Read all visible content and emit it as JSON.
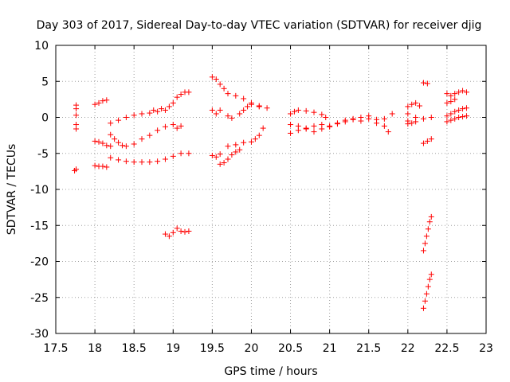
{
  "chart_data": {
    "type": "scatter",
    "title": "Day 303 of 2017, Sidereal Day-to-day VTEC variation (SDTVAR) for receiver djig",
    "xlabel": "GPS time / hours",
    "ylabel": "SDTVAR / TECUs",
    "xlim": [
      17.5,
      23
    ],
    "ylim": [
      -30,
      10
    ],
    "xticks": [
      "17.5",
      "18",
      "18.5",
      "19",
      "19.5",
      "20",
      "20.5",
      "21",
      "21.5",
      "22",
      "22.5",
      "23"
    ],
    "yticks": [
      "10",
      "5",
      "0",
      "-5",
      "-10",
      "-15",
      "-20",
      "-25",
      "-30"
    ],
    "grid": true,
    "marker": "plus",
    "color": "#ff0000",
    "series": [
      {
        "points": [
          [
            17.76,
            1.7
          ],
          [
            17.76,
            1.2
          ],
          [
            17.76,
            0.3
          ],
          [
            17.76,
            -1.0
          ],
          [
            17.76,
            -1.6
          ],
          [
            17.76,
            -7.2
          ],
          [
            17.74,
            -7.4
          ]
        ]
      },
      {
        "points": [
          [
            18.0,
            1.8
          ],
          [
            18.05,
            2.0
          ],
          [
            18.1,
            2.3
          ],
          [
            18.15,
            2.4
          ]
        ]
      },
      {
        "points": [
          [
            18.0,
            -3.3
          ],
          [
            18.05,
            -3.4
          ],
          [
            18.1,
            -3.6
          ],
          [
            18.15,
            -3.9
          ],
          [
            18.2,
            -4.0
          ]
        ]
      },
      {
        "points": [
          [
            18.0,
            -6.7
          ],
          [
            18.05,
            -6.8
          ],
          [
            18.1,
            -6.8
          ],
          [
            18.15,
            -6.9
          ]
        ]
      },
      {
        "points": [
          [
            18.2,
            -0.8
          ],
          [
            18.3,
            -0.4
          ],
          [
            18.4,
            0.0
          ],
          [
            18.5,
            0.3
          ],
          [
            18.6,
            0.5
          ],
          [
            18.7,
            0.6
          ],
          [
            18.75,
            1.0
          ],
          [
            18.8,
            0.8
          ],
          [
            18.85,
            1.2
          ],
          [
            18.9,
            1.0
          ],
          [
            18.95,
            1.5
          ],
          [
            19.0,
            2.0
          ],
          [
            19.05,
            2.8
          ],
          [
            19.1,
            3.2
          ],
          [
            19.15,
            3.5
          ],
          [
            19.2,
            3.5
          ]
        ]
      },
      {
        "points": [
          [
            18.2,
            -2.4
          ],
          [
            18.25,
            -3.0
          ],
          [
            18.3,
            -3.5
          ],
          [
            18.35,
            -3.9
          ],
          [
            18.4,
            -4.0
          ],
          [
            18.5,
            -3.7
          ],
          [
            18.6,
            -3.0
          ],
          [
            18.7,
            -2.5
          ],
          [
            18.8,
            -1.8
          ],
          [
            18.9,
            -1.3
          ],
          [
            19.0,
            -1.0
          ],
          [
            19.05,
            -1.5
          ],
          [
            19.1,
            -1.2
          ]
        ]
      },
      {
        "points": [
          [
            18.2,
            -5.6
          ],
          [
            18.3,
            -5.9
          ],
          [
            18.4,
            -6.1
          ],
          [
            18.5,
            -6.2
          ],
          [
            18.6,
            -6.2
          ],
          [
            18.7,
            -6.2
          ],
          [
            18.8,
            -6.1
          ],
          [
            18.9,
            -5.8
          ],
          [
            19.0,
            -5.4
          ],
          [
            19.1,
            -5.0
          ],
          [
            19.2,
            -5.0
          ]
        ]
      },
      {
        "points": [
          [
            18.9,
            -16.2
          ],
          [
            18.95,
            -16.5
          ],
          [
            19.0,
            -16.0
          ],
          [
            19.05,
            -15.4
          ],
          [
            19.1,
            -15.8
          ],
          [
            19.15,
            -15.9
          ],
          [
            19.2,
            -15.8
          ]
        ]
      },
      {
        "points": [
          [
            19.5,
            5.6
          ],
          [
            19.55,
            5.3
          ],
          [
            19.6,
            4.6
          ],
          [
            19.65,
            4.0
          ],
          [
            19.7,
            3.3
          ],
          [
            19.8,
            3.0
          ],
          [
            19.9,
            2.6
          ],
          [
            20.0,
            2.0
          ],
          [
            20.1,
            1.5
          ],
          [
            20.2,
            1.3
          ]
        ]
      },
      {
        "points": [
          [
            19.5,
            1.0
          ],
          [
            19.55,
            0.5
          ],
          [
            19.6,
            1.0
          ],
          [
            19.7,
            0.2
          ],
          [
            19.75,
            -0.1
          ],
          [
            19.85,
            0.5
          ],
          [
            19.9,
            1.0
          ],
          [
            19.95,
            1.5
          ],
          [
            20.0,
            1.8
          ],
          [
            20.1,
            1.6
          ]
        ]
      },
      {
        "points": [
          [
            19.5,
            -5.3
          ],
          [
            19.55,
            -5.5
          ],
          [
            19.6,
            -5.1
          ],
          [
            19.7,
            -4.0
          ],
          [
            19.8,
            -3.8
          ],
          [
            19.9,
            -3.5
          ],
          [
            20.0,
            -3.4
          ],
          [
            20.05,
            -3.0
          ],
          [
            20.1,
            -2.5
          ],
          [
            20.15,
            -1.5
          ]
        ]
      },
      {
        "points": [
          [
            19.6,
            -6.5
          ],
          [
            19.65,
            -6.3
          ],
          [
            19.7,
            -5.8
          ],
          [
            19.75,
            -5.2
          ],
          [
            19.8,
            -4.8
          ],
          [
            19.85,
            -4.5
          ]
        ]
      },
      {
        "points": [
          [
            20.5,
            0.5
          ],
          [
            20.55,
            0.8
          ],
          [
            20.6,
            1.0
          ],
          [
            20.7,
            0.9
          ],
          [
            20.8,
            0.7
          ],
          [
            20.9,
            0.4
          ],
          [
            20.95,
            0.0
          ]
        ]
      },
      {
        "points": [
          [
            20.5,
            -1.0
          ],
          [
            20.6,
            -1.2
          ],
          [
            20.7,
            -1.5
          ],
          [
            20.8,
            -2.0
          ],
          [
            20.9,
            -1.6
          ],
          [
            21.0,
            -1.2
          ],
          [
            21.1,
            -0.8
          ],
          [
            21.2,
            -0.4
          ],
          [
            21.3,
            -0.2
          ],
          [
            21.4,
            0.0
          ],
          [
            21.5,
            -0.2
          ],
          [
            21.6,
            -0.8
          ],
          [
            21.7,
            -1.2
          ],
          [
            21.75,
            -2.0
          ]
        ]
      },
      {
        "points": [
          [
            20.5,
            -2.2
          ],
          [
            20.6,
            -1.8
          ],
          [
            20.7,
            -1.6
          ],
          [
            20.8,
            -1.2
          ],
          [
            20.9,
            -1.0
          ],
          [
            21.0,
            -1.3
          ],
          [
            21.1,
            -0.9
          ],
          [
            21.2,
            -0.6
          ],
          [
            21.3,
            -0.3
          ],
          [
            21.4,
            -0.5
          ],
          [
            21.5,
            0.2
          ],
          [
            21.6,
            -0.3
          ],
          [
            21.7,
            -0.2
          ],
          [
            21.8,
            0.5
          ]
        ]
      },
      {
        "points": [
          [
            22.0,
            1.5
          ],
          [
            22.05,
            1.8
          ],
          [
            22.1,
            2.0
          ],
          [
            22.15,
            1.6
          ],
          [
            22.0,
            0.5
          ],
          [
            22.1,
            0.0
          ],
          [
            22.2,
            -0.2
          ],
          [
            22.3,
            0.0
          ],
          [
            22.0,
            -0.5
          ],
          [
            22.05,
            -0.8
          ],
          [
            22.1,
            -0.6
          ],
          [
            22.0,
            -0.9
          ]
        ]
      },
      {
        "points": [
          [
            22.2,
            4.8
          ],
          [
            22.25,
            4.7
          ]
        ]
      },
      {
        "points": [
          [
            22.2,
            -3.6
          ],
          [
            22.25,
            -3.3
          ],
          [
            22.3,
            -3.0
          ]
        ]
      },
      {
        "points": [
          [
            22.2,
            -18.5
          ],
          [
            22.22,
            -17.5
          ],
          [
            22.24,
            -16.5
          ],
          [
            22.26,
            -15.5
          ],
          [
            22.28,
            -14.5
          ],
          [
            22.3,
            -13.8
          ]
        ]
      },
      {
        "points": [
          [
            22.2,
            -26.5
          ],
          [
            22.22,
            -25.5
          ],
          [
            22.24,
            -24.5
          ],
          [
            22.26,
            -23.5
          ],
          [
            22.28,
            -22.5
          ],
          [
            22.3,
            -21.8
          ]
        ]
      },
      {
        "points": [
          [
            22.5,
            3.3
          ],
          [
            22.55,
            3.0
          ],
          [
            22.6,
            3.3
          ],
          [
            22.65,
            3.5
          ],
          [
            22.7,
            3.7
          ],
          [
            22.75,
            3.5
          ]
        ]
      },
      {
        "points": [
          [
            22.5,
            0.2
          ],
          [
            22.55,
            0.5
          ],
          [
            22.6,
            0.8
          ],
          [
            22.65,
            1.0
          ],
          [
            22.7,
            1.2
          ],
          [
            22.75,
            1.3
          ]
        ]
      },
      {
        "points": [
          [
            22.5,
            -0.6
          ],
          [
            22.55,
            -0.4
          ],
          [
            22.6,
            -0.2
          ],
          [
            22.65,
            0.0
          ],
          [
            22.7,
            0.1
          ],
          [
            22.75,
            0.2
          ]
        ]
      },
      {
        "points": [
          [
            22.5,
            2.0
          ],
          [
            22.55,
            2.2
          ],
          [
            22.6,
            2.5
          ]
        ]
      }
    ]
  }
}
